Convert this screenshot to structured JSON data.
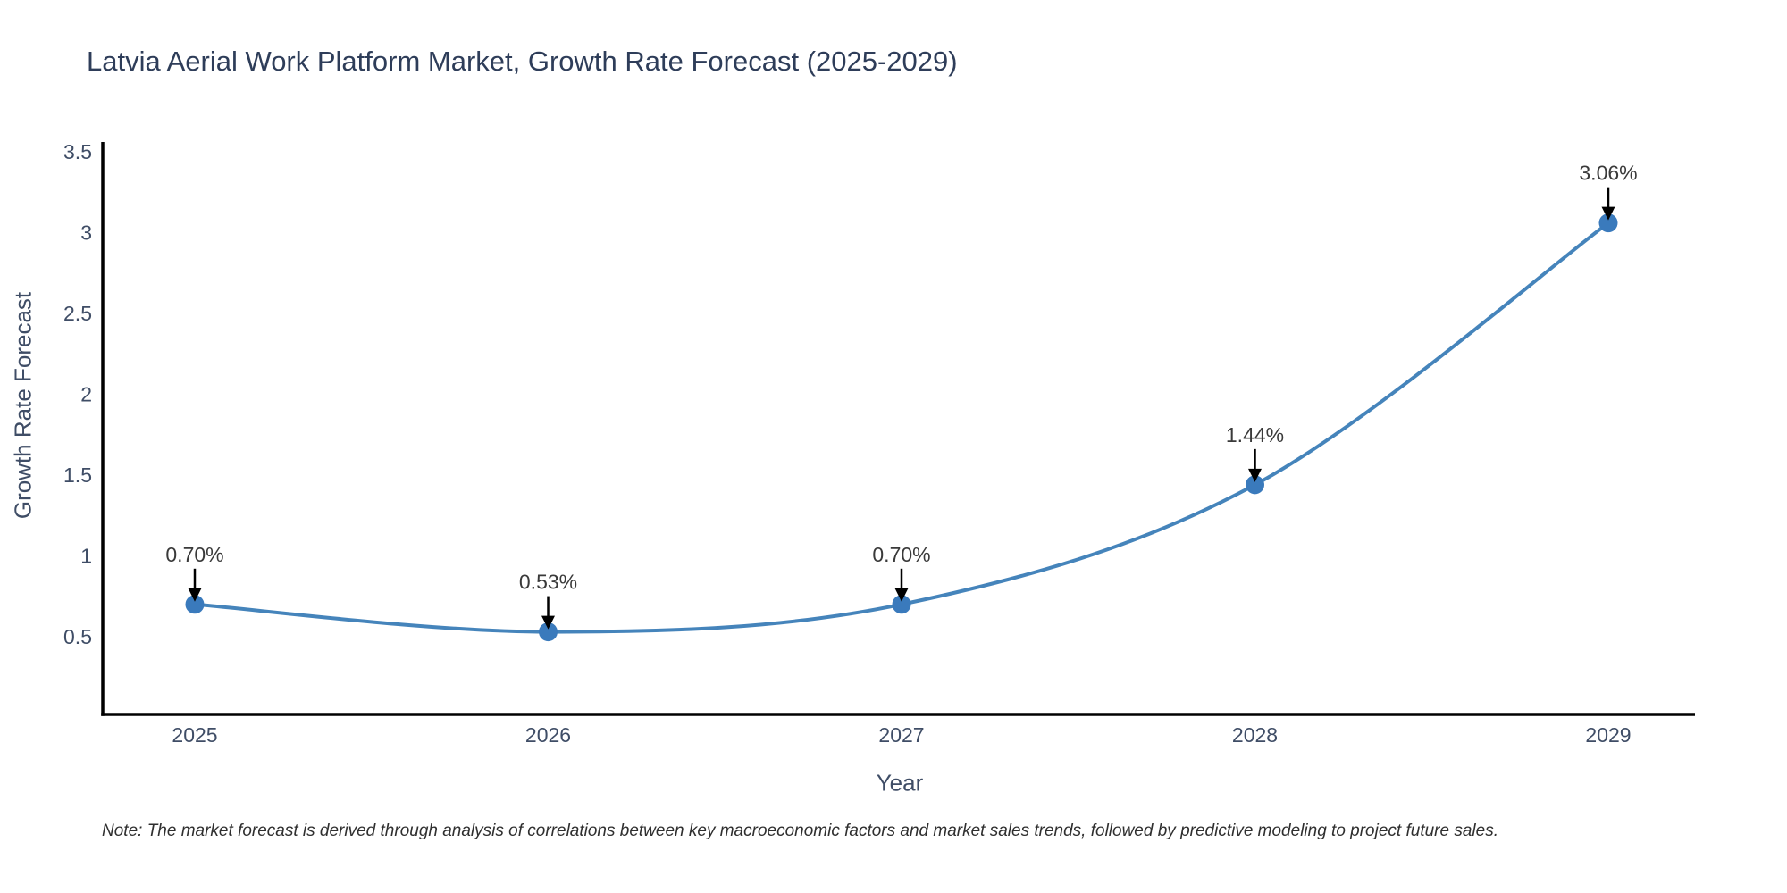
{
  "header": {
    "title": "Latvia Aerial Work Platform Market, Growth Rate Forecast (2025-2029)"
  },
  "footnote": "Note: The market forecast is derived through analysis of correlations between key macroeconomic factors and market sales trends, followed by predictive modeling to project future sales.",
  "chart_data": {
    "type": "line",
    "line_shape": "spline",
    "title": "Latvia Aerial Work Platform Market, Growth Rate Forecast (2025-2029)",
    "xlabel": "Year",
    "ylabel": "Growth Rate Forecast",
    "x": [
      2025,
      2026,
      2027,
      2028,
      2029
    ],
    "x_tick_labels": [
      "2025",
      "2026",
      "2027",
      "2028",
      "2029"
    ],
    "values": [
      0.7,
      0.53,
      0.7,
      1.44,
      3.06
    ],
    "point_labels": [
      "0.70%",
      "0.53%",
      "0.70%",
      "1.44%",
      "3.06%"
    ],
    "y_ticks": [
      3.5,
      3,
      2.5,
      2,
      1.5,
      1,
      0.5
    ],
    "y_tick_labels": [
      "3.5",
      "3",
      "2.5",
      "2",
      "1.5",
      "1",
      "0.5"
    ],
    "ylim": [
      0.02,
      3.56
    ],
    "grid": false,
    "legend_position": "none",
    "colors": {
      "line": "#4584bb",
      "marker": "#3a7abc",
      "axis": "#000000",
      "annotation_arrow": "#000000",
      "annotation_text": "#3a3a3a",
      "tick_text": "#3f4d66",
      "title_text": "#2e3d59"
    }
  }
}
